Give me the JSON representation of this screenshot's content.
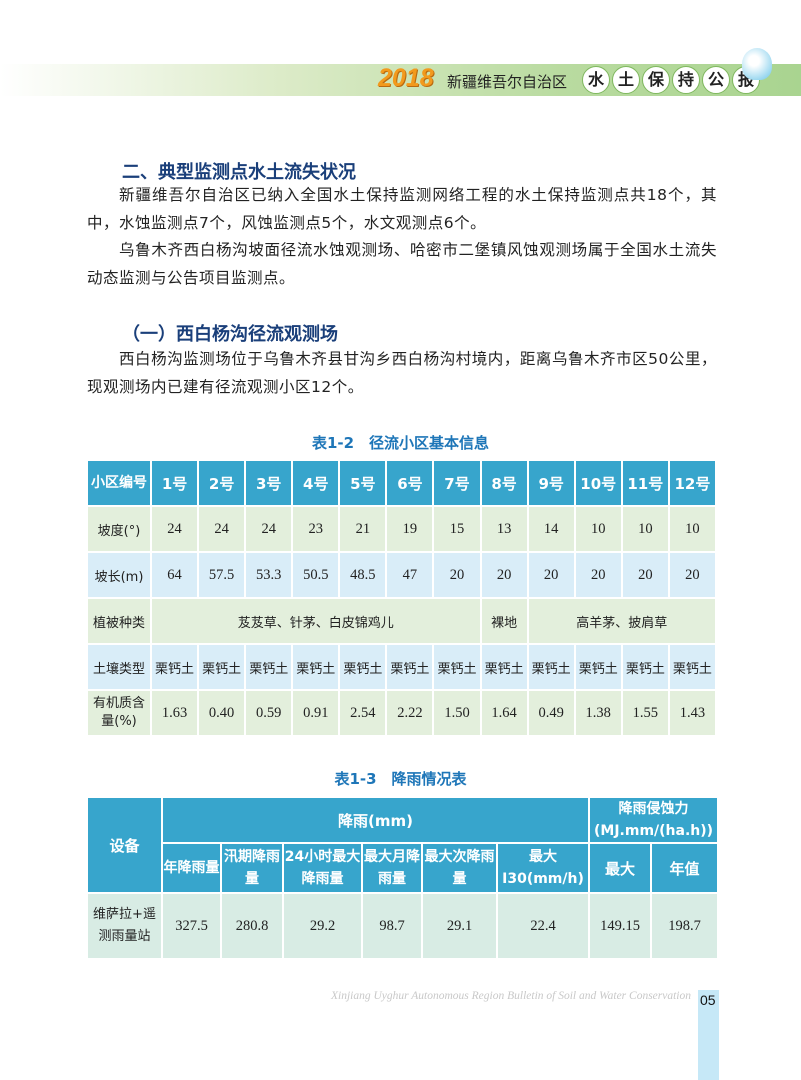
{
  "header": {
    "year": "2018",
    "region": "新疆维吾尔自治区",
    "title_chars": [
      "水",
      "土",
      "保",
      "持",
      "公",
      "报"
    ]
  },
  "section": {
    "heading": "二、典型监测点水土流失状况",
    "paragraphs": [
      "新疆维吾尔自治区已纳入全国水土保持监测网络工程的水土保持监测点共18个，其中，水蚀监测点7个，风蚀监测点5个，水文观测点6个。",
      "乌鲁木齐西白杨沟坡面径流水蚀观测场、哈密市二堡镇风蚀观测场属于全国水土流失动态监测与公告项目监测点。"
    ],
    "subheading": "（一）西白杨沟径流观测场",
    "sub_paragraph": "西白杨沟监测场位于乌鲁木齐县甘沟乡西白杨沟村境内，距离乌鲁木齐市区50公里，现观测场内已建有径流观测小区12个。"
  },
  "table12": {
    "caption": "表1-2　径流小区基本信息",
    "corner": "小区编号",
    "plots": [
      "1号",
      "2号",
      "3号",
      "4号",
      "5号",
      "6号",
      "7号",
      "8号",
      "9号",
      "10号",
      "11号",
      "12号"
    ],
    "slope_label": "坡度(°)",
    "slope": [
      "24",
      "24",
      "24",
      "23",
      "21",
      "19",
      "15",
      "13",
      "14",
      "10",
      "10",
      "10"
    ],
    "length_label": "坡长(m)",
    "length": [
      "64",
      "57.5",
      "53.3",
      "50.5",
      "48.5",
      "47",
      "20",
      "20",
      "20",
      "20",
      "20",
      "20"
    ],
    "veg_label": "植被种类",
    "veg": [
      "芨芨草、针茅、白皮锦鸡儿",
      "裸地",
      "高羊茅、披肩草"
    ],
    "soil_label": "土壤类型",
    "soil": [
      "栗钙土",
      "栗钙土",
      "栗钙土",
      "栗钙土",
      "栗钙土",
      "栗钙土",
      "栗钙土",
      "栗钙土",
      "栗钙土",
      "栗钙土",
      "栗钙土",
      "栗钙土"
    ],
    "organic_label": "有机质含量(%)",
    "organic": [
      "1.63",
      "0.40",
      "0.59",
      "0.91",
      "2.54",
      "2.22",
      "1.50",
      "1.64",
      "0.49",
      "1.38",
      "1.55",
      "1.43"
    ]
  },
  "table13": {
    "caption": "表1-3　降雨情况表",
    "equipment": "设备",
    "rain_group": "降雨(mm)",
    "erosivity_group": "降雨侵蚀力(MJ.mm/(ha.h))",
    "columns": [
      "年降雨量",
      "汛期降雨量",
      "24小时最大降雨量",
      "最大月降雨量",
      "最大次降雨量",
      "最大I30(mm/h)",
      "最大",
      "年值"
    ],
    "row_label": "维萨拉+遥测雨量站",
    "values": [
      "327.5",
      "280.8",
      "29.2",
      "98.7",
      "29.1",
      "22.4",
      "149.15",
      "198.7"
    ]
  },
  "footer": {
    "text": "Xinjiang Uyghur Autonomous Region Bulletin of Soil and Water Conservation",
    "page": "05"
  }
}
